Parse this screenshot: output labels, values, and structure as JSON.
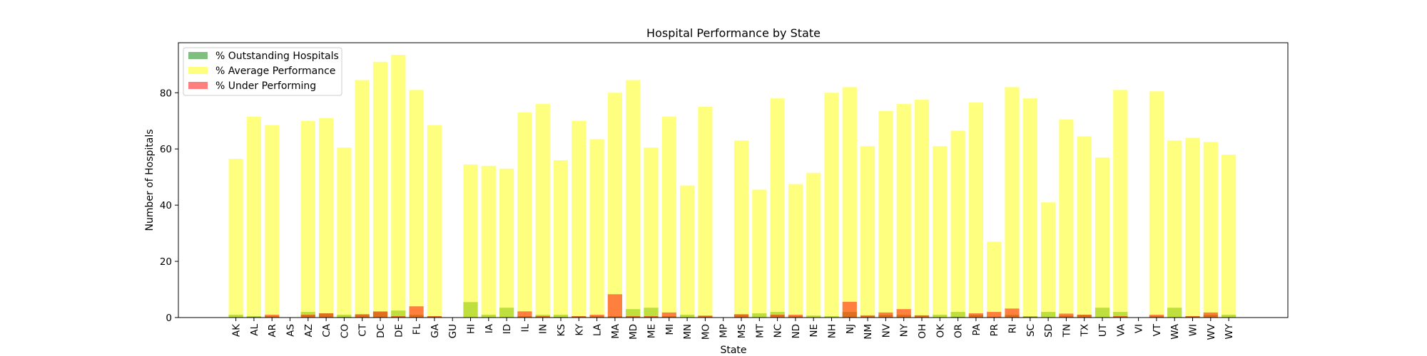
{
  "chart_data": {
    "type": "bar",
    "title": "Hospital Performance by State",
    "xlabel": "State",
    "ylabel": "Number of Hospitals",
    "ylim": [
      0,
      97.8
    ],
    "yticks": [
      0,
      20,
      40,
      60,
      80
    ],
    "grid": false,
    "legend_position": "top-left",
    "categories": [
      "AK",
      "AL",
      "AR",
      "AS",
      "AZ",
      "CA",
      "CO",
      "CT",
      "DC",
      "DE",
      "FL",
      "GA",
      "GU",
      "HI",
      "IA",
      "ID",
      "IL",
      "IN",
      "KS",
      "KY",
      "LA",
      "MA",
      "MD",
      "ME",
      "MI",
      "MN",
      "MO",
      "MP",
      "MS",
      "MT",
      "NC",
      "ND",
      "NE",
      "NH",
      "NJ",
      "NM",
      "NV",
      "NY",
      "OH",
      "OK",
      "OR",
      "PA",
      "PR",
      "RI",
      "SC",
      "SD",
      "TN",
      "TX",
      "UT",
      "VA",
      "VI",
      "VT",
      "WA",
      "WI",
      "WV",
      "WY"
    ],
    "series": [
      {
        "name": "% Outstanding Hospitals",
        "color": "#008000",
        "values": [
          1.0,
          0.5,
          0.5,
          0,
          2.0,
          1.5,
          1.0,
          1.0,
          2.0,
          2.5,
          1.0,
          0.5,
          0,
          5.5,
          1.0,
          3.5,
          0.5,
          1.0,
          1.0,
          0.5,
          0.5,
          0.5,
          3.0,
          3.5,
          0.5,
          1.0,
          0.5,
          0,
          1.0,
          1.5,
          2.0,
          0.5,
          0.7,
          0.5,
          2.0,
          0.5,
          1.0,
          1.0,
          0.7,
          1.0,
          2.0,
          1.0,
          0.3,
          1.0,
          0.5,
          2.0,
          0.7,
          1.0,
          3.5,
          2.0,
          0,
          0.5,
          3.5,
          0.5,
          1.0,
          1.0
        ]
      },
      {
        "name": "% Average Performance",
        "color": "#ffff00",
        "values": [
          56.5,
          71.5,
          68.5,
          0,
          70.0,
          71.0,
          60.5,
          84.5,
          91.0,
          93.5,
          81.0,
          68.5,
          0,
          54.5,
          54.0,
          53.0,
          73.0,
          76.0,
          56.0,
          70.0,
          63.5,
          80.0,
          84.5,
          60.5,
          71.5,
          47.0,
          75.0,
          0,
          63.0,
          45.5,
          78.0,
          47.5,
          51.5,
          80.0,
          82.0,
          61.0,
          73.5,
          76.0,
          77.5,
          61.0,
          66.5,
          76.5,
          27.0,
          82.0,
          78.0,
          41.0,
          70.5,
          64.5,
          57.0,
          81.0,
          0,
          80.5,
          63.0,
          64.0,
          62.5,
          58.0
        ]
      },
      {
        "name": "% Under Performing",
        "color": "#ff0000",
        "values": [
          0,
          0.2,
          1.0,
          0,
          1.0,
          1.5,
          0.2,
          1.2,
          2.2,
          0.5,
          4.0,
          0.5,
          0,
          0,
          0,
          0,
          2.2,
          0.5,
          0.2,
          0.5,
          1.0,
          8.3,
          0.5,
          0.5,
          1.8,
          0,
          0.7,
          0,
          1.2,
          0,
          1.0,
          1.0,
          0,
          0,
          5.6,
          0.8,
          1.8,
          3.0,
          0.8,
          0,
          0.2,
          1.5,
          2.0,
          3.2,
          0.3,
          0,
          1.4,
          1.0,
          0,
          0.5,
          0,
          1.0,
          0,
          0.5,
          1.8,
          0
        ]
      }
    ]
  }
}
